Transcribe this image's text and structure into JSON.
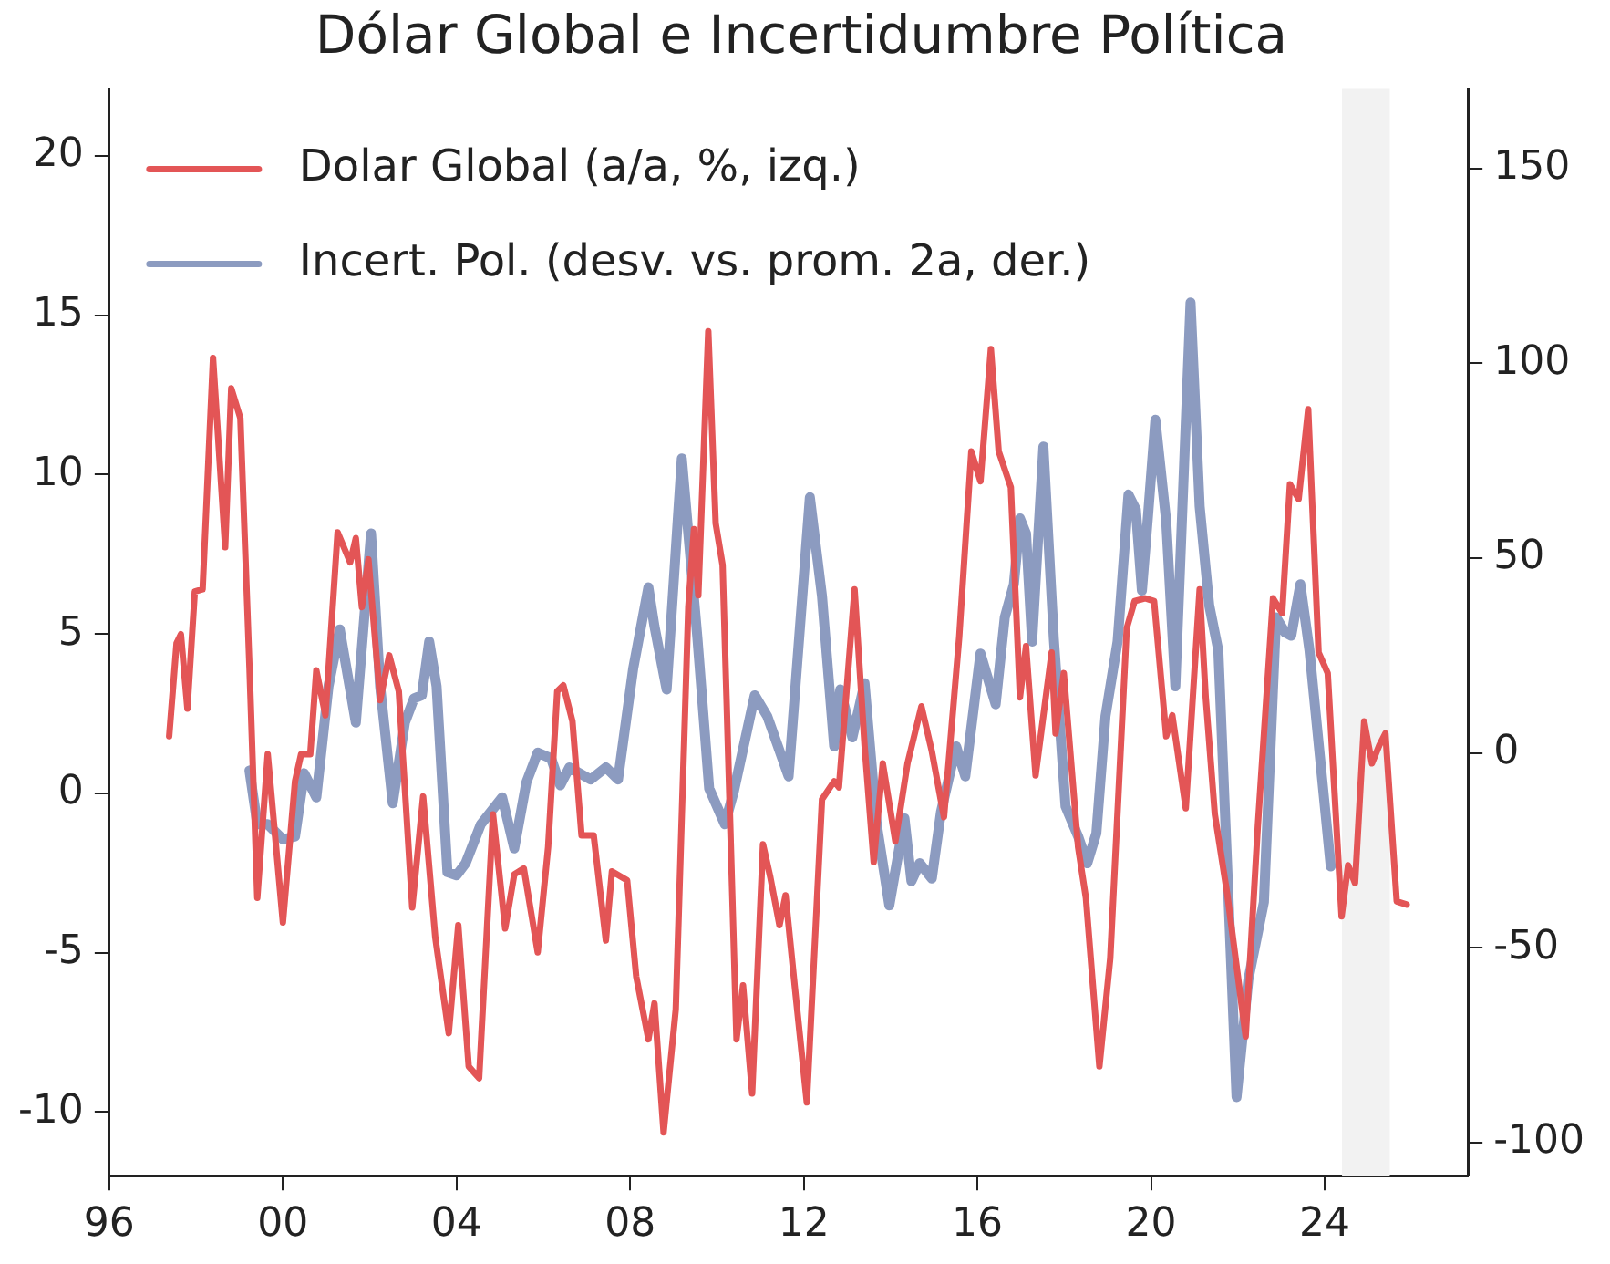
{
  "chart_data": {
    "type": "line",
    "title": "Dólar Global e Incertidumbre Política",
    "legend": "top left",
    "grid": false,
    "marker": "none",
    "line_style": "solid",
    "xlim": [
      1996,
      2027.3
    ],
    "xticks": [
      {
        "value": 1996,
        "label": "96"
      },
      {
        "value": 2000,
        "label": "00"
      },
      {
        "value": 2004,
        "label": "04"
      },
      {
        "value": 2008,
        "label": "08"
      },
      {
        "value": 2012,
        "label": "12"
      },
      {
        "value": 2016,
        "label": "16"
      },
      {
        "value": 2020,
        "label": "20"
      },
      {
        "value": 2024,
        "label": "24"
      }
    ],
    "ylim": [
      -12,
      22.1
    ],
    "yticks": [
      -10,
      -5,
      0,
      5,
      10,
      15,
      20
    ],
    "y2lim": [
      -108.5,
      170.4
    ],
    "y2ticks": [
      -100,
      -50,
      0,
      50,
      100,
      150
    ],
    "bands": [
      {
        "axis": "x",
        "from": 2024.4,
        "to": 2025.5,
        "color": "#f2f2f2"
      }
    ],
    "series": [
      {
        "name": "Dolar Global (a/a, %, izq.)",
        "color": "#e35556",
        "x": [
          1997.38,
          1997.55,
          1997.65,
          1997.8,
          1997.97,
          1998.15,
          1998.39,
          1998.67,
          1998.81,
          1999.02,
          1999.23,
          1999.41,
          1999.65,
          2000.0,
          2000.28,
          2000.42,
          2000.63,
          2000.77,
          2000.98,
          2001.26,
          2001.55,
          2001.68,
          2001.82,
          2001.97,
          2002.24,
          2002.45,
          2002.67,
          2002.98,
          2003.23,
          2003.51,
          2003.82,
          2004.04,
          2004.28,
          2004.52,
          2004.84,
          2005.12,
          2005.33,
          2005.55,
          2005.87,
          2006.11,
          2006.32,
          2006.46,
          2006.67,
          2006.88,
          2007.16,
          2007.44,
          2007.58,
          2007.93,
          2008.14,
          2008.42,
          2008.56,
          2008.77,
          2009.05,
          2009.34,
          2009.47,
          2009.57,
          2009.8,
          2009.97,
          2010.13,
          2010.45,
          2010.6,
          2010.81,
          2011.06,
          2011.23,
          2011.44,
          2011.58,
          2011.79,
          2012.07,
          2012.42,
          2012.7,
          2012.81,
          2013.17,
          2013.4,
          2013.61,
          2013.82,
          2014.11,
          2014.39,
          2014.71,
          2014.95,
          2015.23,
          2015.58,
          2015.86,
          2016.07,
          2016.31,
          2016.49,
          2016.77,
          2016.98,
          2017.12,
          2017.34,
          2017.71,
          2017.8,
          2017.99,
          2018.32,
          2018.5,
          2018.81,
          2019.06,
          2019.44,
          2019.62,
          2019.86,
          2020.07,
          2020.35,
          2020.49,
          2020.8,
          2021.12,
          2021.26,
          2021.47,
          2021.76,
          2022.18,
          2022.46,
          2022.81,
          2023.02,
          2023.2,
          2023.4,
          2023.62,
          2023.86,
          2024.07,
          2024.39,
          2024.54,
          2024.7,
          2024.91,
          2025.09,
          2025.26,
          2025.4,
          2025.66,
          2025.89
        ],
        "values": [
          1.79,
          4.71,
          4.99,
          2.66,
          6.33,
          6.4,
          13.66,
          7.72,
          12.71,
          11.77,
          3.95,
          -3.28,
          1.23,
          -4.05,
          0.38,
          1.23,
          1.23,
          3.86,
          2.45,
          8.19,
          7.25,
          8.01,
          5.84,
          7.34,
          2.92,
          4.33,
          3.2,
          -3.58,
          -0.1,
          -4.52,
          -7.53,
          -4.14,
          -8.57,
          -8.94,
          -0.66,
          -4.24,
          -2.54,
          -2.36,
          -4.99,
          -1.69,
          3.2,
          3.39,
          2.26,
          -1.32,
          -1.32,
          -4.62,
          -2.45,
          -2.73,
          -5.75,
          -7.72,
          -6.59,
          -10.64,
          -6.78,
          5.84,
          8.29,
          6.21,
          14.5,
          8.47,
          7.16,
          -7.72,
          -6.03,
          -9.42,
          -1.6,
          -2.64,
          -4.14,
          -3.2,
          -6.03,
          -9.7,
          -0.19,
          0.38,
          0.19,
          6.4,
          1.51,
          -2.16,
          0.94,
          -1.51,
          0.94,
          2.73,
          1.32,
          -0.75,
          4.9,
          10.73,
          9.79,
          13.94,
          10.73,
          9.6,
          3.01,
          4.62,
          0.56,
          4.42,
          1.88,
          3.77,
          -1.69,
          -3.29,
          -8.57,
          -5.18,
          5.18,
          6.03,
          6.12,
          6.03,
          1.79,
          2.45,
          -0.47,
          6.4,
          3.01,
          -0.66,
          -3.2,
          -7.63,
          -1.03,
          6.12,
          5.65,
          9.7,
          9.23,
          12.05,
          4.42,
          3.77,
          -3.86,
          -2.26,
          -2.82,
          2.26,
          0.94,
          1.51,
          1.88,
          -3.39,
          -3.49
        ]
      },
      {
        "name": "Incert. Pol. (desv. vs. prom. 2a, der.)",
        "color": "#8c9bc0",
        "axis": "y2",
        "x": [
          1999.23,
          1999.41,
          1999.65,
          2000.0,
          2000.28,
          2000.49,
          2000.77,
          2001.05,
          2001.31,
          2001.68,
          2002.03,
          2002.24,
          2002.53,
          2002.81,
          2003.02,
          2003.2,
          2003.37,
          2003.54,
          2003.79,
          2004.0,
          2004.21,
          2004.56,
          2005.05,
          2005.33,
          2005.61,
          2005.87,
          2006.18,
          2006.39,
          2006.6,
          2007.09,
          2007.44,
          2007.72,
          2008.07,
          2008.42,
          2008.56,
          2008.84,
          2009.19,
          2009.55,
          2009.82,
          2010.18,
          2010.39,
          2010.87,
          2011.16,
          2011.65,
          2012.14,
          2012.42,
          2012.7,
          2012.84,
          2013.12,
          2013.4,
          2013.68,
          2013.97,
          2014.32,
          2014.48,
          2014.67,
          2014.95,
          2015.16,
          2015.51,
          2015.72,
          2016.07,
          2016.42,
          2016.63,
          2016.84,
          2016.98,
          2017.12,
          2017.26,
          2017.52,
          2017.76,
          2018.03,
          2018.32,
          2018.53,
          2018.74,
          2018.95,
          2019.23,
          2019.48,
          2019.65,
          2019.79,
          2019.93,
          2020.1,
          2020.35,
          2020.56,
          2020.91,
          2021.12,
          2021.34,
          2021.55,
          2021.76,
          2021.97,
          2022.24,
          2022.6,
          2022.88,
          2023.09,
          2023.23,
          2023.44,
          2023.65,
          2024.14
        ],
        "values": [
          -4.5,
          -18.3,
          -18.3,
          -22.2,
          -21.4,
          -5.2,
          -11.4,
          17.1,
          31.7,
          7.8,
          56.3,
          17.1,
          -12.9,
          7.8,
          14.0,
          14.8,
          28.6,
          17.1,
          -30.6,
          -31.4,
          -28.3,
          -18.3,
          -11.4,
          -24.5,
          -7.5,
          0.1,
          -1.4,
          -8.3,
          -3.7,
          -6.8,
          -3.7,
          -6.8,
          21.7,
          42.5,
          32.5,
          16.3,
          75.6,
          29.4,
          -9.1,
          -18.3,
          -9.8,
          14.8,
          9.4,
          -6.0,
          65.6,
          40.2,
          1.7,
          16.3,
          4.0,
          17.9,
          -18.3,
          -39.1,
          -16.8,
          -32.9,
          -28.3,
          -32.2,
          -15.2,
          1.7,
          -6.0,
          25.5,
          12.5,
          34.8,
          43.3,
          60.2,
          56.3,
          28.6,
          78.6,
          29.4,
          -13.7,
          -21.4,
          -28.3,
          -20.6,
          9.4,
          28.6,
          66.3,
          62.5,
          41.7,
          60.9,
          85.5,
          59.4,
          17.1,
          115.6,
          63.3,
          37.9,
          26.3,
          -30.6,
          -88.3,
          -58.3,
          -38.3,
          34.8,
          30.9,
          30.1,
          43.3,
          26.3,
          -29.1
        ]
      }
    ]
  }
}
